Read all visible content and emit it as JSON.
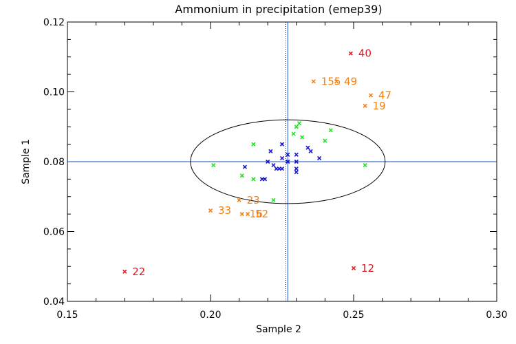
{
  "chart_data": {
    "type": "scatter",
    "title": "Ammonium in precipitation (emep39)",
    "xlabel": "Sample 2",
    "ylabel": "Sample 1",
    "xlim": [
      0.15,
      0.3
    ],
    "ylim": [
      0.04,
      0.12
    ],
    "xticks": [
      0.15,
      0.2,
      0.25,
      0.3
    ],
    "xtick_labels": [
      "0.15",
      "0.20",
      "0.25",
      "0.30"
    ],
    "yticks": [
      0.04,
      0.06,
      0.08,
      0.1,
      0.12
    ],
    "ytick_labels": [
      "0.04",
      "0.06",
      "0.08",
      "0.10",
      "0.12"
    ],
    "reference": {
      "median_x": 0.227,
      "median_y": 0.08,
      "ellipse_x_range": [
        0.193,
        0.261
      ],
      "ellipse_y_range": [
        0.068,
        0.092
      ],
      "line_color": "#1a4dbf",
      "ellipse_color": "#000000"
    },
    "series": [
      {
        "name": "red",
        "color": "#e8141e",
        "points": [
          {
            "x": 0.249,
            "y": 0.111,
            "label": "40"
          },
          {
            "x": 0.17,
            "y": 0.0485,
            "label": "22"
          },
          {
            "x": 0.25,
            "y": 0.0495,
            "label": "12"
          }
        ]
      },
      {
        "name": "orange",
        "color": "#f08214",
        "points": [
          {
            "x": 0.236,
            "y": 0.103,
            "label": "155"
          },
          {
            "x": 0.244,
            "y": 0.103,
            "label": "49"
          },
          {
            "x": 0.256,
            "y": 0.099,
            "label": "47"
          },
          {
            "x": 0.254,
            "y": 0.096,
            "label": "19"
          },
          {
            "x": 0.21,
            "y": 0.069,
            "label": "23"
          },
          {
            "x": 0.2,
            "y": 0.066,
            "label": "33"
          },
          {
            "x": 0.211,
            "y": 0.065,
            "label": "16"
          },
          {
            "x": 0.213,
            "y": 0.065,
            "label": "52"
          }
        ]
      },
      {
        "name": "green",
        "color": "#1ee61e",
        "points": [
          {
            "x": 0.231,
            "y": 0.091
          },
          {
            "x": 0.23,
            "y": 0.09
          },
          {
            "x": 0.242,
            "y": 0.089
          },
          {
            "x": 0.229,
            "y": 0.088
          },
          {
            "x": 0.232,
            "y": 0.087
          },
          {
            "x": 0.24,
            "y": 0.086
          },
          {
            "x": 0.215,
            "y": 0.085
          },
          {
            "x": 0.201,
            "y": 0.079
          },
          {
            "x": 0.254,
            "y": 0.079
          },
          {
            "x": 0.211,
            "y": 0.076
          },
          {
            "x": 0.215,
            "y": 0.075
          },
          {
            "x": 0.222,
            "y": 0.069
          }
        ]
      },
      {
        "name": "blue",
        "color": "#1414d2",
        "points": [
          {
            "x": 0.225,
            "y": 0.085
          },
          {
            "x": 0.234,
            "y": 0.084
          },
          {
            "x": 0.221,
            "y": 0.083
          },
          {
            "x": 0.235,
            "y": 0.083
          },
          {
            "x": 0.227,
            "y": 0.082
          },
          {
            "x": 0.23,
            "y": 0.082
          },
          {
            "x": 0.225,
            "y": 0.081
          },
          {
            "x": 0.238,
            "y": 0.081
          },
          {
            "x": 0.227,
            "y": 0.08
          },
          {
            "x": 0.22,
            "y": 0.08
          },
          {
            "x": 0.23,
            "y": 0.08
          },
          {
            "x": 0.222,
            "y": 0.079
          },
          {
            "x": 0.212,
            "y": 0.0785
          },
          {
            "x": 0.223,
            "y": 0.078
          },
          {
            "x": 0.224,
            "y": 0.078
          },
          {
            "x": 0.225,
            "y": 0.078
          },
          {
            "x": 0.23,
            "y": 0.078
          },
          {
            "x": 0.23,
            "y": 0.077
          },
          {
            "x": 0.218,
            "y": 0.075
          },
          {
            "x": 0.219,
            "y": 0.075
          }
        ]
      }
    ]
  }
}
